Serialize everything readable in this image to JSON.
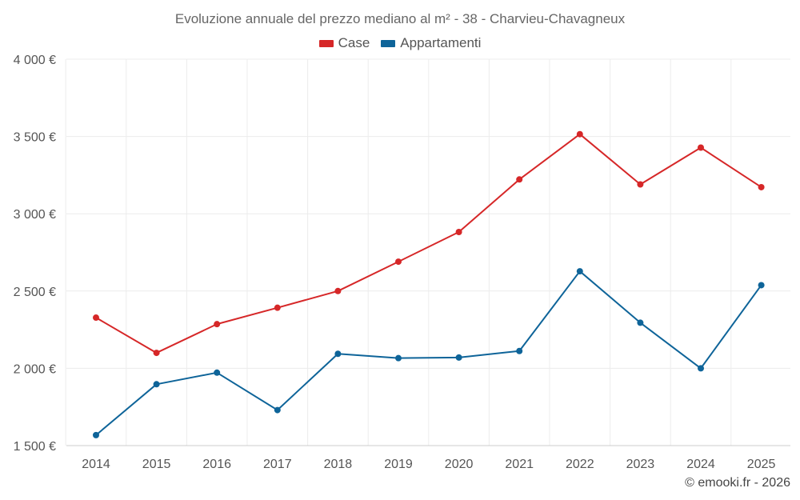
{
  "chart_data": {
    "type": "line",
    "title": "Evoluzione annuale del prezzo mediano al m² - 38 - Charvieu-Chavagneux",
    "xlabel": "",
    "ylabel": "",
    "categories": [
      "2014",
      "2015",
      "2016",
      "2017",
      "2018",
      "2019",
      "2020",
      "2021",
      "2022",
      "2023",
      "2024",
      "2025"
    ],
    "ylim": [
      1500,
      4000
    ],
    "yticks": [
      1500,
      2000,
      2500,
      3000,
      3500,
      4000
    ],
    "ytick_labels": [
      "1 500 €",
      "2 000 €",
      "2 500 €",
      "3 000 €",
      "3 500 €",
      "4 000 €"
    ],
    "grid": true,
    "legend_position": "top-center",
    "series": [
      {
        "name": "Case",
        "color": "#d62728",
        "values": [
          2328,
          2100,
          2286,
          2392,
          2500,
          2690,
          2882,
          3222,
          3515,
          3190,
          3428,
          3172
        ]
      },
      {
        "name": "Appartamenti",
        "color": "#0e6499",
        "values": [
          1568,
          1897,
          1972,
          1730,
          2094,
          2066,
          2070,
          2112,
          2628,
          2295,
          2000,
          2538
        ]
      }
    ]
  },
  "credit": "© emooki.fr - 2026"
}
